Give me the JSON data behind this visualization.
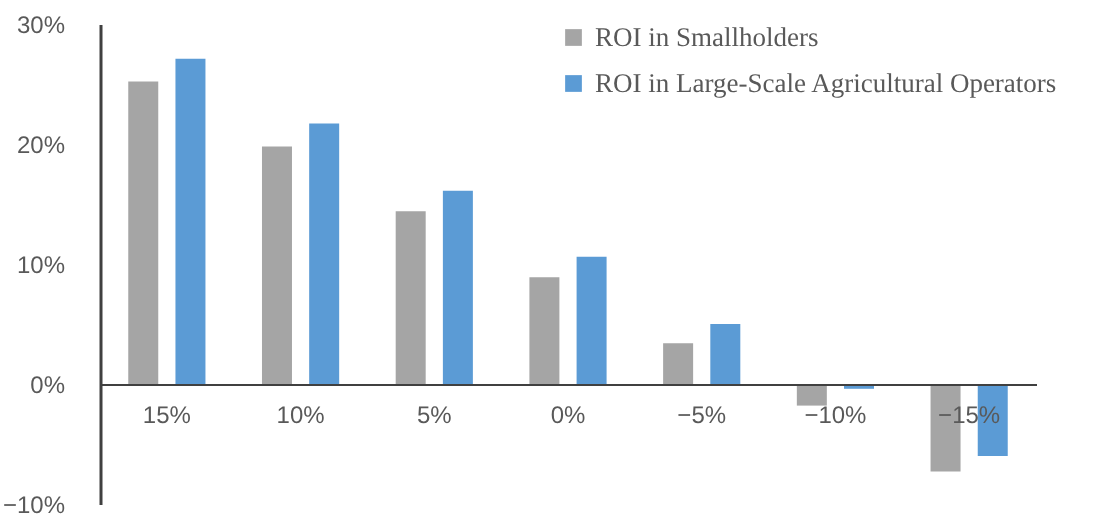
{
  "chart_data": {
    "type": "bar",
    "categories": [
      "15%",
      "10%",
      "5%",
      "0%",
      "−5%",
      "−10%",
      "−15%"
    ],
    "series": [
      {
        "name": "ROI in Smallholders",
        "color": "#a5a5a5",
        "values": [
          25.2,
          19.8,
          14.4,
          8.9,
          3.4,
          -1.8,
          -7.3
        ]
      },
      {
        "name": "ROI in Large-Scale Agricultural Operators",
        "color": "#5b9bd5",
        "values": [
          27.1,
          21.7,
          16.1,
          10.6,
          5.0,
          -0.4,
          -6.0
        ]
      }
    ],
    "ylim": [
      -10,
      30
    ],
    "yticks": [
      {
        "value": -10,
        "label": "−10%"
      },
      {
        "value": 0,
        "label": "0%"
      },
      {
        "value": 10,
        "label": "10%"
      },
      {
        "value": 20,
        "label": "20%"
      },
      {
        "value": 30,
        "label": "30%"
      }
    ],
    "grid": false,
    "legend": "top right"
  }
}
